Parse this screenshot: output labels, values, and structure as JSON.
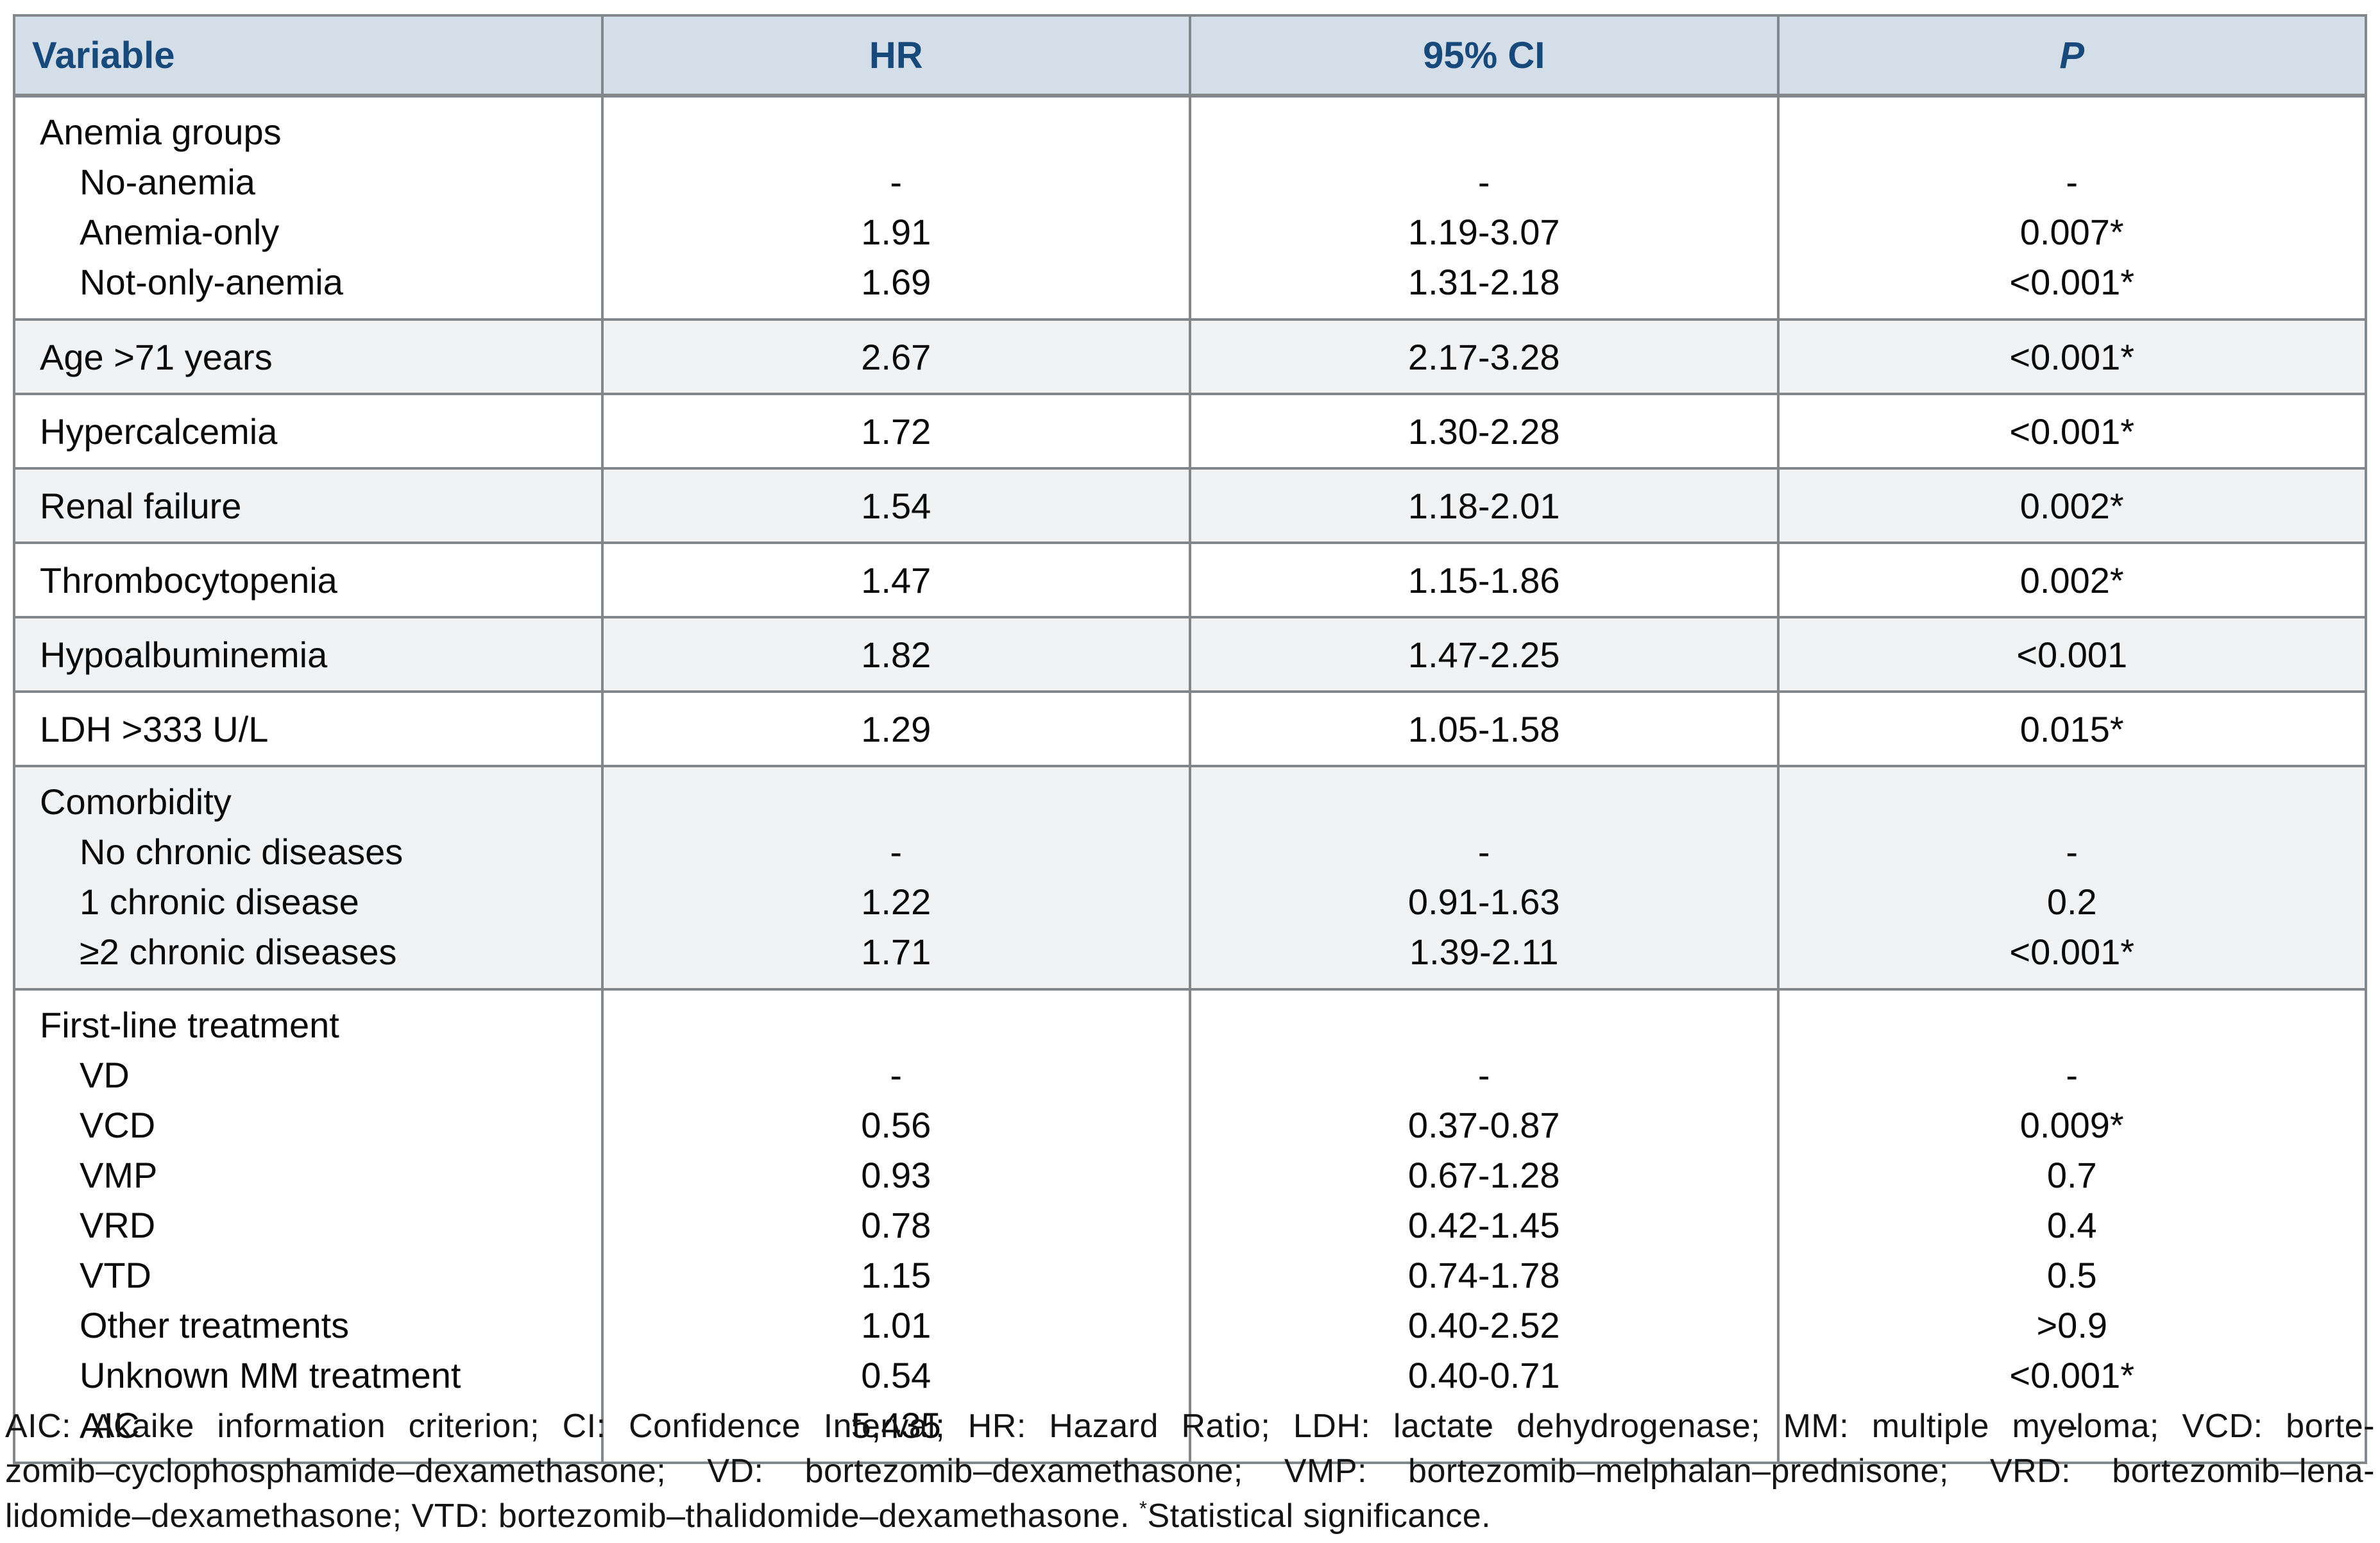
{
  "colors": {
    "header_bg": "#d3dee8",
    "header_text": "#17497a",
    "border_gray": "#82878c",
    "row_alt_gray": "#f1f2f3",
    "body_text": "#0b0b0b"
  },
  "table": {
    "columns": [
      {
        "label": "Variable"
      },
      {
        "label": "HR"
      },
      {
        "label": "95% CI"
      },
      {
        "label": "P"
      }
    ],
    "sections": [
      {
        "shade": "white",
        "rows": [
          {
            "label": "Anemia groups",
            "indent": false,
            "hr": "",
            "ci": "",
            "p": ""
          },
          {
            "label": "No-anemia",
            "indent": true,
            "hr": "-",
            "ci": "-",
            "p": "-"
          },
          {
            "label": "Anemia-only",
            "indent": true,
            "hr": "1.91",
            "ci": "1.19-3.07",
            "p": "0.007*"
          },
          {
            "label": "Not-only-anemia",
            "indent": true,
            "hr": "1.69",
            "ci": "1.31-2.18",
            "p": "<0.001*"
          }
        ]
      },
      {
        "shade": "gray",
        "rows": [
          {
            "label": "Age >71 years",
            "indent": false,
            "hr": "2.67",
            "ci": "2.17-3.28",
            "p": "<0.001*"
          }
        ]
      },
      {
        "shade": "white",
        "rows": [
          {
            "label": "Hypercalcemia",
            "indent": false,
            "hr": "1.72",
            "ci": "1.30-2.28",
            "p": "<0.001*"
          }
        ]
      },
      {
        "shade": "gray",
        "rows": [
          {
            "label": "Renal failure",
            "indent": false,
            "hr": "1.54",
            "ci": "1.18-2.01",
            "p": "0.002*"
          }
        ]
      },
      {
        "shade": "white",
        "rows": [
          {
            "label": "Thrombocytopenia",
            "indent": false,
            "hr": "1.47",
            "ci": "1.15-1.86",
            "p": "0.002*"
          }
        ]
      },
      {
        "shade": "gray",
        "rows": [
          {
            "label": "Hypoalbuminemia",
            "indent": false,
            "hr": "1.82",
            "ci": "1.47-2.25",
            "p": "<0.001"
          }
        ]
      },
      {
        "shade": "white",
        "rows": [
          {
            "label": "LDH >333 U/L",
            "indent": false,
            "hr": "1.29",
            "ci": "1.05-1.58",
            "p": "0.015*"
          }
        ]
      },
      {
        "shade": "gray",
        "rows": [
          {
            "label": "Comorbidity",
            "indent": false,
            "hr": "",
            "ci": "",
            "p": ""
          },
          {
            "label": "No chronic diseases",
            "indent": true,
            "hr": "-",
            "ci": "-",
            "p": "-"
          },
          {
            "label": "1 chronic disease",
            "indent": true,
            "hr": "1.22",
            "ci": "0.91-1.63",
            "p": "0.2"
          },
          {
            "label": "≥2 chronic diseases",
            "indent": true,
            "hr": "1.71",
            "ci": "1.39-2.11",
            "p": "<0.001*"
          }
        ]
      },
      {
        "shade": "white",
        "rows": [
          {
            "label": "First-line treatment",
            "indent": false,
            "hr": "",
            "ci": "",
            "p": ""
          },
          {
            "label": "VD",
            "indent": true,
            "hr": "-",
            "ci": "-",
            "p": "-"
          },
          {
            "label": "VCD",
            "indent": true,
            "hr": "0.56",
            "ci": "0.37-0.87",
            "p": "0.009*"
          },
          {
            "label": "VMP",
            "indent": true,
            "hr": "0.93",
            "ci": "0.67-1.28",
            "p": "0.7"
          },
          {
            "label": "VRD",
            "indent": true,
            "hr": "0.78",
            "ci": "0.42-1.45",
            "p": "0.4"
          },
          {
            "label": "VTD",
            "indent": true,
            "hr": "1.15",
            "ci": "0.74-1.78",
            "p": "0.5"
          },
          {
            "label": "Other treatments",
            "indent": true,
            "hr": "1.01",
            "ci": "0.40-2.52",
            "p": ">0.9"
          },
          {
            "label": "Unknown MM treatment",
            "indent": true,
            "hr": "0.54",
            "ci": "0.40-0.71",
            "p": "<0.001*"
          },
          {
            "label": "AIC",
            "indent": true,
            "hr": "5,435",
            "ci": "-",
            "p": "-"
          }
        ]
      }
    ]
  },
  "footnote": {
    "line1": "AIC: Akaike information criterion; CI: Confidence Interval; HR: Hazard Ratio; LDH: lactate dehydrogenase; MM: multiple myeloma; VCD: borte-",
    "line2": "zomib–cyclophosphamide–dexamethasone; VD: bortezomib–dexamethasone; VMP: bortezomib–melphalan–prednisone; VRD: bortezomib–lena-",
    "line3_pre": "lidomide–dexamethasone; VTD: bortezomib–thalidomide–dexamethasone. ",
    "line3_sup": "*",
    "line3_post": "Statistical significance."
  }
}
